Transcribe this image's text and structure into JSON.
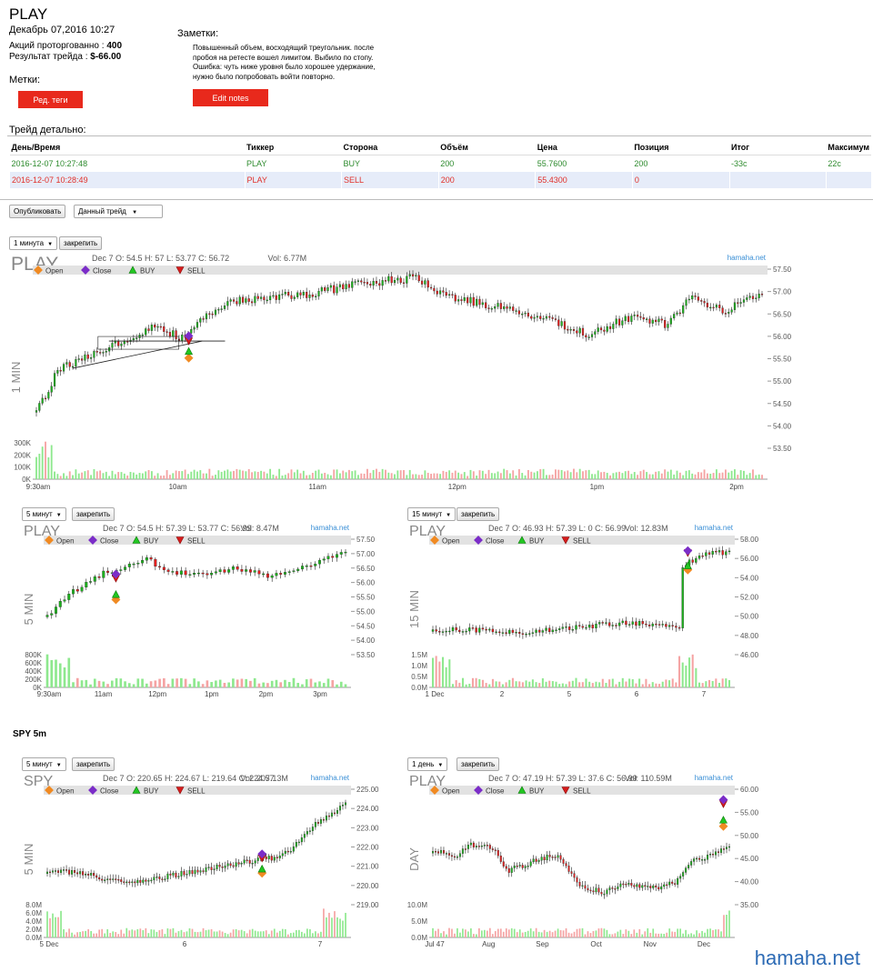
{
  "header": {
    "ticker": "PLAY",
    "date": "Декабрь 07,2016 10:27",
    "shares_label": "Акций проторгованно :",
    "shares_value": "400",
    "result_label": "Результат трейда :",
    "result_value": "$-66.00",
    "tags_label": "Метки:",
    "tags_button": "Ред. теги"
  },
  "notes": {
    "label": "Заметки:",
    "lines": [
      "Повышенный объем, восходящий треугольник. после",
      "пробоя на ретесте вошел лимитом. Выбило по стопу.",
      "Ошибка: чуть ниже уровня было хорошее удержание,",
      "нужно было попробовать войти повторно."
    ],
    "button": "Edit notes"
  },
  "trade_detail": {
    "label": "Трейд детально:",
    "columns": [
      "День/Время",
      "Тиккер",
      "Сторона",
      "Объём",
      "Цена",
      "Позиция",
      "Итог",
      "Максимум"
    ],
    "rows": [
      [
        "2016-12-07 10:27:48",
        "PLAY",
        "BUY",
        "200",
        "55.7600",
        "200",
        "-33c",
        "22c"
      ],
      [
        "2016-12-07 10:28:49",
        "PLAY",
        "SELL",
        "200",
        "55.4300",
        "0",
        "",
        ""
      ]
    ]
  },
  "controls": {
    "publish": "Опубликовать",
    "trade_select": "Данный трейд"
  },
  "legend": [
    "Open",
    "Close",
    "BUY",
    "SELL"
  ],
  "colors": {
    "up": "#1db31d",
    "down": "#e32020",
    "open": "#f08a22",
    "close": "#7b2dc8",
    "buy": "#22c622",
    "sell": "#d71c1c",
    "accent": "#e8291c",
    "brand": "#3a8fd6"
  },
  "section_spy": "SPY 5m",
  "brand": "hamaha.net",
  "watermark": "hamaha.net",
  "charts": [
    {
      "id": "c1",
      "interval": "1 минута",
      "pin": "закрепить",
      "symbol": "PLAY",
      "side_label": "1 MIN",
      "info": "Dec 7 O: 54.5 H: 57 L: 53.77 C: 56.72",
      "vol": "Vol: 6.77M",
      "price_ticks": [
        "57.50",
        "57.00",
        "56.50",
        "56.00",
        "55.50",
        "55.00",
        "54.50",
        "54.00",
        "53.50"
      ],
      "vol_ticks": [
        "300K",
        "200K",
        "100K",
        "0K"
      ],
      "x_ticks": [
        "9:30am",
        "10am",
        "11am",
        "12pm",
        "1pm",
        "2pm"
      ]
    },
    {
      "id": "c2",
      "interval": "5 минут",
      "pin": "закрепить",
      "symbol": "PLAY",
      "side_label": "5 MIN",
      "info": "Dec 7 O: 54.5 H: 57.39 L: 53.77 C: 56.99",
      "vol": "Vol: 8.47M",
      "price_ticks": [
        "57.50",
        "57.00",
        "56.50",
        "56.00",
        "55.50",
        "55.00",
        "54.50",
        "54.00",
        "53.50"
      ],
      "vol_ticks": [
        "800K",
        "600K",
        "400K",
        "200K",
        "0K"
      ],
      "x_ticks": [
        "9:30am",
        "11am",
        "12pm",
        "1pm",
        "2pm",
        "3pm"
      ]
    },
    {
      "id": "c3",
      "interval": "15 минут",
      "pin": "закрепить",
      "symbol": "PLAY",
      "side_label": "15 MIN",
      "info": "Dec 7 O: 46.93 H: 57.39 L: 0 C: 56.99",
      "vol": "Vol: 12.83M",
      "price_ticks": [
        "58.00",
        "56.00",
        "54.00",
        "52.00",
        "50.00",
        "48.00",
        "46.00"
      ],
      "vol_ticks": [
        "1.5M",
        "1.0M",
        "0.5M",
        "0.0M"
      ],
      "x_ticks": [
        "1 Dec",
        "2",
        "5",
        "6",
        "7"
      ]
    },
    {
      "id": "c4",
      "interval": "5 минут",
      "pin": "закрепить",
      "symbol": "SPY",
      "side_label": "5 MIN",
      "info": "Dec 7 O: 220.65 H: 224.67 L: 219.64 C: 224.57",
      "vol": "Vol: 207.13M",
      "price_ticks": [
        "225.00",
        "224.00",
        "223.00",
        "222.00",
        "221.00",
        "220.00",
        "219.00"
      ],
      "vol_ticks": [
        "8.0M",
        "6.0M",
        "4.0M",
        "2.0M",
        "0.0M"
      ],
      "x_ticks": [
        "5 Dec",
        "6",
        "7"
      ]
    },
    {
      "id": "c5",
      "interval": "1 день",
      "pin": "закрепить",
      "symbol": "PLAY",
      "side_label": "DAY",
      "info": "Dec 7 O: 47.19 H: 57.39 L: 37.6 C: 56.99",
      "vol": "Vol: 110.59M",
      "price_ticks": [
        "60.00",
        "55.00",
        "50.00",
        "45.00",
        "40.00",
        "35.00"
      ],
      "vol_ticks": [
        "10.0M",
        "5.0M",
        "0.0M"
      ],
      "x_ticks": [
        "Jul 47",
        "Aug",
        "Sep",
        "Oct",
        "Nov",
        "Dec"
      ]
    }
  ]
}
